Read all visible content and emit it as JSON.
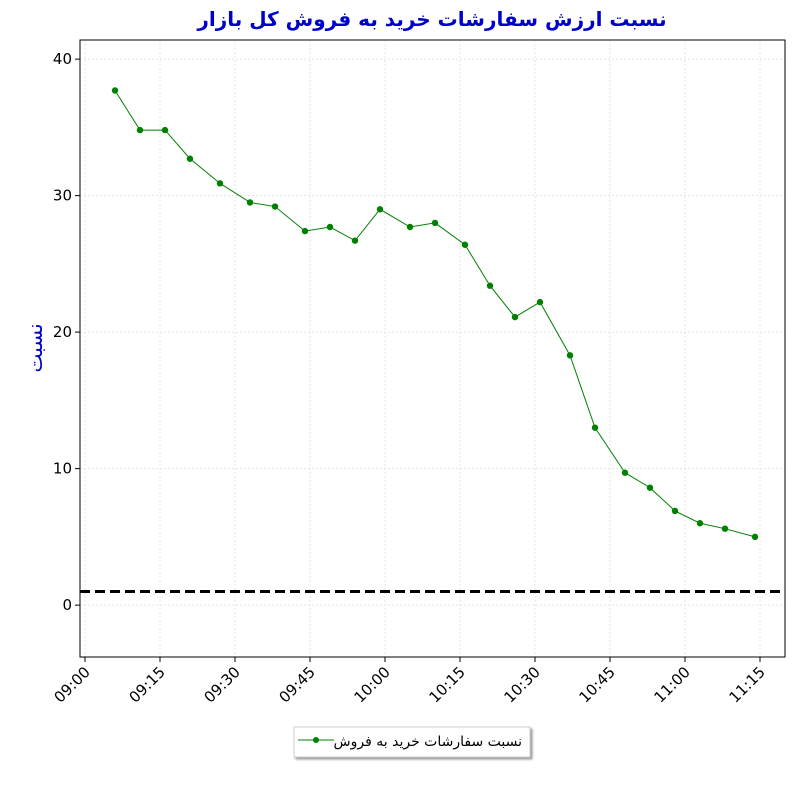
{
  "chart_data": {
    "type": "line",
    "title": "نسبت ارزش سفارشات خرید به فروش کل بازار",
    "y_label": "نسبت",
    "x": [
      "09:06",
      "09:11",
      "09:16",
      "09:21",
      "09:27",
      "09:33",
      "09:38",
      "09:44",
      "09:49",
      "09:54",
      "09:59",
      "10:05",
      "10:10",
      "10:16",
      "10:21",
      "10:26",
      "10:31",
      "10:37",
      "10:42",
      "10:48",
      "10:53",
      "10:58",
      "11:03",
      "11:08",
      "11:14"
    ],
    "series": [
      {
        "name": "نسبت سفارشات خرید به فروش",
        "color": "#008000",
        "values": [
          37.7,
          34.8,
          34.8,
          32.7,
          30.9,
          29.5,
          29.2,
          27.4,
          27.7,
          26.7,
          29.0,
          27.7,
          28.0,
          26.4,
          23.4,
          21.1,
          22.2,
          18.3,
          13.0,
          9.7,
          8.6,
          6.9,
          6.0,
          5.6,
          5.0
        ]
      }
    ],
    "xlim": [
      "08:59",
      "11:20"
    ],
    "xticks": [
      "09:00",
      "09:15",
      "09:30",
      "09:45",
      "10:00",
      "10:15",
      "10:30",
      "10:45",
      "11:00",
      "11:15"
    ],
    "ylim": [
      -3.8,
      41.4
    ],
    "yticks": [
      0,
      10,
      20,
      30,
      40
    ],
    "hline": 1,
    "grid": true,
    "legend": "bottom"
  }
}
